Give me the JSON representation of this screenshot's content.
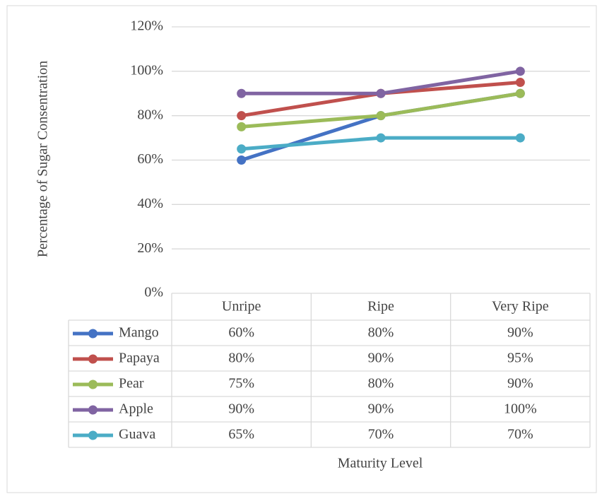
{
  "chart_data": {
    "type": "line",
    "y_label": "Percentage of Sugar Consentration",
    "x_label": "Maturity Level",
    "categories": [
      "Unripe",
      "Ripe",
      "Very Ripe"
    ],
    "series": [
      {
        "name": "Mango",
        "color": "#4472c4",
        "values": [
          60,
          80,
          90
        ],
        "value_labels": [
          "60%",
          "80%",
          "90%"
        ]
      },
      {
        "name": "Papaya",
        "color": "#c0504d",
        "values": [
          80,
          90,
          95
        ],
        "value_labels": [
          "80%",
          "90%",
          "95%"
        ]
      },
      {
        "name": "Pear",
        "color": "#9bbb59",
        "values": [
          75,
          80,
          90
        ],
        "value_labels": [
          "75%",
          "80%",
          "90%"
        ]
      },
      {
        "name": "Apple",
        "color": "#8064a2",
        "values": [
          90,
          90,
          100
        ],
        "value_labels": [
          "90%",
          "90%",
          "100%"
        ]
      },
      {
        "name": "Guava",
        "color": "#4bacc6",
        "values": [
          65,
          70,
          70
        ],
        "value_labels": [
          "65%",
          "70%",
          "70%"
        ]
      }
    ],
    "ylim": [
      0,
      120
    ],
    "yticks": [
      {
        "value": 0,
        "label": "0%"
      },
      {
        "value": 20,
        "label": "20%"
      },
      {
        "value": 40,
        "label": "40%"
      },
      {
        "value": 60,
        "label": "60%"
      },
      {
        "value": 80,
        "label": "80%"
      },
      {
        "value": 100,
        "label": "100%"
      },
      {
        "value": 120,
        "label": "120%"
      }
    ],
    "grid": true,
    "data_table": true
  }
}
